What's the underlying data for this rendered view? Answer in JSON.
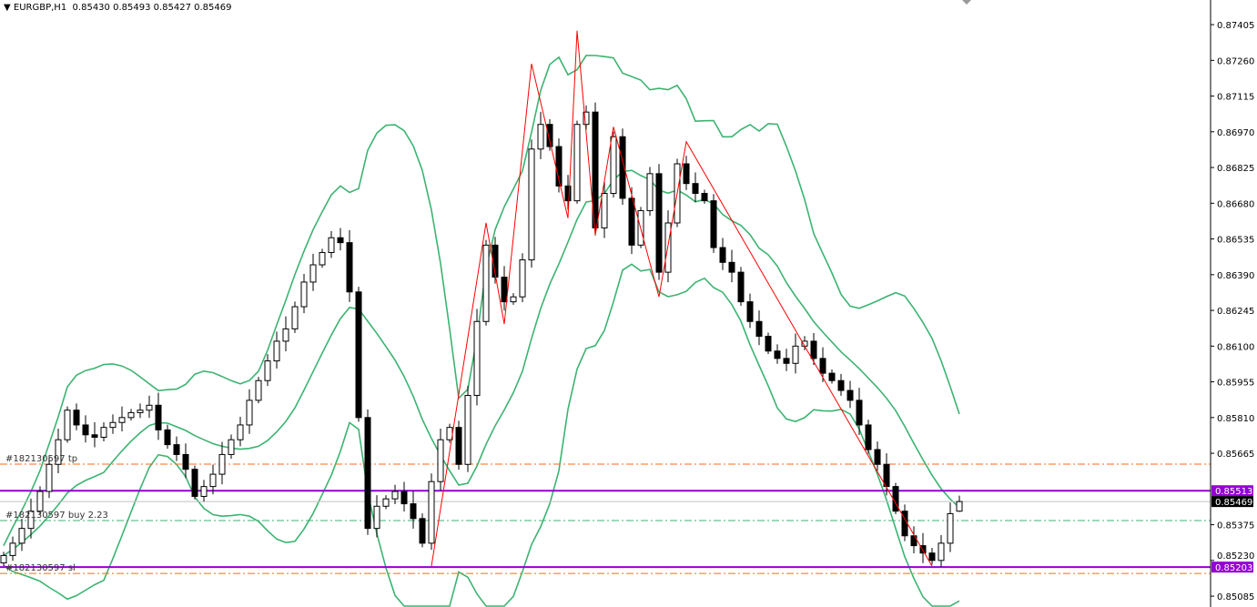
{
  "header": {
    "symbol": "EURGBP,H1",
    "ohlc": "0.85430 0.85493 0.85427 0.85469"
  },
  "colors": {
    "bull_fill": "#ffffff",
    "bear_fill": "#000000",
    "bands": "#3cb371",
    "zigzag": "#ff0000",
    "level_lines": "#9400d3",
    "tp_sl_lines": "#ff6a1a",
    "entry_line": "#3cb371",
    "bid_line": "#c0c0c0"
  },
  "chart_data": {
    "type": "candlestick",
    "title": "EURGBP,H1",
    "grid": false,
    "ylim": [
      0.85041,
      0.87505
    ],
    "y_ticks": [
      "0.87405",
      "0.87260",
      "0.87115",
      "0.86970",
      "0.86825",
      "0.86680",
      "0.86535",
      "0.86390",
      "0.86245",
      "0.86100",
      "0.85955",
      "0.85810",
      "0.85665",
      "0.85375",
      "0.85230",
      "0.85085"
    ],
    "closes": [
      0.8525,
      0.853,
      0.8536,
      0.8543,
      0.8551,
      0.8562,
      0.8572,
      0.8584,
      0.8578,
      0.8574,
      0.8573,
      0.8577,
      0.8579,
      0.8581,
      0.8583,
      0.8584,
      0.8586,
      0.8576,
      0.857,
      0.8566,
      0.856,
      0.8549,
      0.8553,
      0.8558,
      0.8566,
      0.8572,
      0.8578,
      0.8588,
      0.8596,
      0.8604,
      0.8612,
      0.8617,
      0.8626,
      0.8636,
      0.8643,
      0.8648,
      0.8654,
      0.8652,
      0.8632,
      0.8581,
      0.8536,
      0.8545,
      0.8548,
      0.8551,
      0.8546,
      0.854,
      0.853,
      0.8555,
      0.8572,
      0.8577,
      0.8562,
      0.859,
      0.862,
      0.8651,
      0.8638,
      0.8628,
      0.863,
      0.8645,
      0.869,
      0.87,
      0.8691,
      0.8675,
      0.8669,
      0.87,
      0.8705,
      0.8658,
      0.8672,
      0.8695,
      0.867,
      0.8651,
      0.8665,
      0.868,
      0.864,
      0.866,
      0.8684,
      0.8676,
      0.8672,
      0.8669,
      0.865,
      0.8644,
      0.864,
      0.8628,
      0.862,
      0.8614,
      0.8608,
      0.8605,
      0.8603,
      0.861,
      0.8612,
      0.8605,
      0.8599,
      0.8596,
      0.8592,
      0.8588,
      0.8578,
      0.8568,
      0.8562,
      0.8553,
      0.8543,
      0.8533,
      0.8529,
      0.8526,
      0.8523,
      0.853,
      0.8542,
      0.85469
    ],
    "last_open": 0.8543,
    "last_high": 0.85493,
    "last_low": 0.85427,
    "zigzag_pivots": [
      [
        47,
        0.85207
      ],
      [
        53,
        0.866
      ],
      [
        55,
        0.8619
      ],
      [
        58,
        0.87246
      ],
      [
        62,
        0.8662
      ],
      [
        63,
        0.8738
      ],
      [
        65,
        0.8655
      ],
      [
        67,
        0.8699
      ],
      [
        72,
        0.863
      ],
      [
        75,
        0.8693
      ],
      [
        102,
        0.85207
      ]
    ],
    "bollinger": {
      "period": 12,
      "deviation": 2
    },
    "levels": [
      {
        "price": 0.85513,
        "label": "0.85513",
        "kind": "level"
      },
      {
        "price": 0.85203,
        "label": "0.85203",
        "kind": "level"
      }
    ],
    "bid": {
      "price": 0.85469,
      "label": "0.85469"
    },
    "orders": [
      {
        "price": 0.85621,
        "label": "#182130597 tp",
        "kind": "tp"
      },
      {
        "price": 0.85392,
        "label": "#182130597 buy 2.23",
        "kind": "entry"
      },
      {
        "price": 0.85177,
        "label": "#182130597 sl",
        "kind": "sl"
      }
    ]
  }
}
